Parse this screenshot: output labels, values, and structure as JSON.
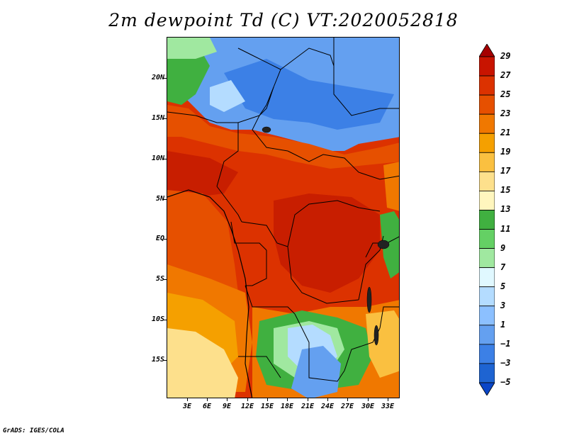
{
  "title": "2m dewpoint Td (C) VT:2020052818",
  "footer": "GrADS: IGES/COLA",
  "lat_labels": [
    "20N",
    "15N",
    "10N",
    "5N",
    "EQ",
    "5S",
    "10S",
    "15S"
  ],
  "lon_labels": [
    "3E",
    "6E",
    "9E",
    "12E",
    "15E",
    "18E",
    "21E",
    "24E",
    "27E",
    "30E",
    "33E"
  ],
  "colorbar": {
    "levels": [
      "29",
      "27",
      "25",
      "23",
      "21",
      "19",
      "17",
      "15",
      "13",
      "11",
      "9",
      "7",
      "5",
      "3",
      "1",
      "−1",
      "−3",
      "−5"
    ],
    "colors": [
      "#a50000",
      "#c81400",
      "#dc3200",
      "#e65000",
      "#f07800",
      "#f5a000",
      "#fac040",
      "#fde08c",
      "#fff6be",
      "#40b040",
      "#64d064",
      "#a0e8a0",
      "#e0f8ff",
      "#b4dcff",
      "#8cc0ff",
      "#64a0f0",
      "#3c80e6",
      "#1e64d2",
      "#0a46c8"
    ]
  },
  "map_colors": {
    "deep_red": "#c81e00",
    "red": "#dc3200",
    "orange_red": "#e65000",
    "orange": "#f07800",
    "light_orange": "#f5a000",
    "yellow": "#fde08c",
    "green": "#40b040",
    "light_green": "#a0e8a0",
    "light_blue": "#b4dcff",
    "blue": "#64a0f0",
    "dark_blue": "#3c80e6"
  }
}
